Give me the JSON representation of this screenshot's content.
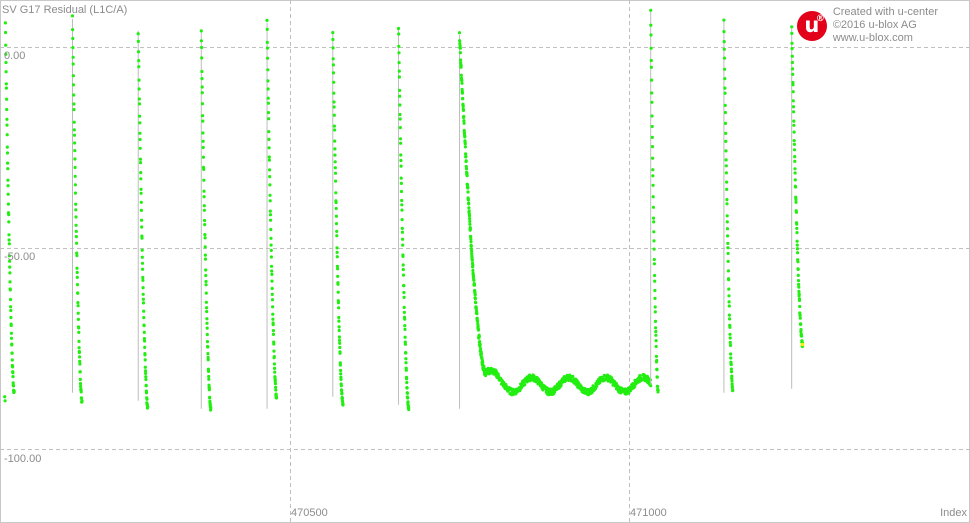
{
  "chart_data": {
    "type": "scatter",
    "title": "SV G17 Residual (L1C/A)",
    "xlabel": "Index",
    "ylabel": "",
    "xlim": [
      470075,
      471000
    ],
    "ylim": [
      -111,
      11
    ],
    "x_ticks": [
      "470500",
      "471000"
    ],
    "x_tick_values": [
      470500,
      471000
    ],
    "y_ticks": [
      "0.00",
      "-50.00",
      "-100.00"
    ],
    "y_tick_values": [
      0,
      -50,
      -100
    ],
    "grid": true,
    "point_color": "#22ee11",
    "segments": [
      {
        "x": [
          470080,
          470093
        ],
        "y": [
          6,
          -86
        ],
        "endpoint": [
          -87,
          -88
        ]
      },
      {
        "x": [
          470179,
          470193
        ],
        "y": [
          7,
          -88
        ]
      },
      {
        "x": [
          470276,
          470290
        ],
        "y": [
          4,
          -90
        ]
      },
      {
        "x": [
          470369,
          470383
        ],
        "y": [
          4,
          -90
        ]
      },
      {
        "x": [
          470466,
          470480
        ],
        "y": [
          6,
          -87
        ]
      },
      {
        "x": [
          470563,
          470578
        ],
        "y": [
          4,
          -89
        ]
      },
      {
        "x": [
          470660,
          470675
        ],
        "y": [
          5,
          -90
        ]
      },
      {
        "x": [
          470750,
          470788
        ],
        "y": [
          3,
          -81
        ],
        "noise_tail": [
          470788,
          471032,
          -84
        ]
      },
      {
        "x": [
          471032,
          471043
        ],
        "y": [
          9,
          -86
        ]
      },
      {
        "x": [
          471140,
          471153
        ],
        "y": [
          7,
          -85
        ]
      },
      {
        "x": [
          471240,
          471256
        ],
        "y": [
          5,
          -74
        ]
      }
    ]
  },
  "watermark": {
    "logo_letter": "u",
    "logo_mark": "®",
    "line1": "Created with u-center",
    "line2": "©2016 u-blox AG",
    "line3": "www.u-blox.com",
    "logo_color": "#e2001a"
  }
}
